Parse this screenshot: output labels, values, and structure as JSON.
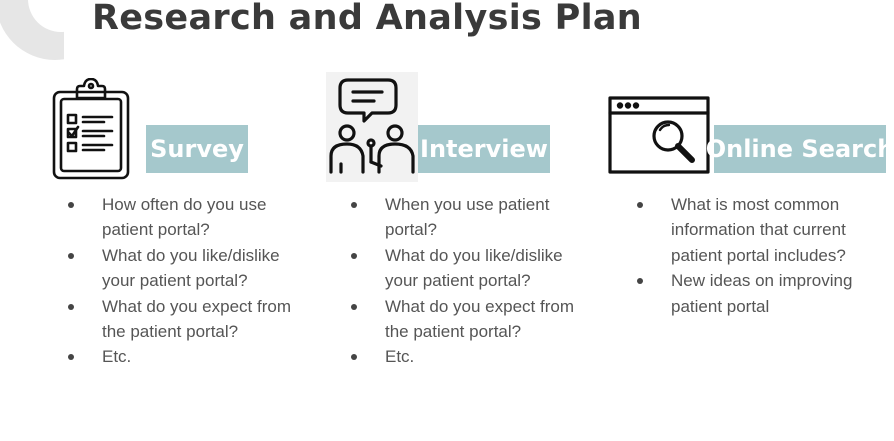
{
  "page": {
    "title": "Research and Analysis Plan"
  },
  "columns": [
    {
      "label": "Survey",
      "icon": "clipboard-checklist-icon",
      "items": [
        "How often do you use patient portal?",
        "What do you like/dislike your patient portal?",
        "What do you expect from the patient portal?",
        "Etc."
      ]
    },
    {
      "label": "Interview",
      "icon": "interview-people-icon",
      "items": [
        "When you use patient portal?",
        "What do you like/dislike your patient portal?",
        "What do you expect from the patient portal?",
        "Etc."
      ]
    },
    {
      "label": "Online Search",
      "icon": "browser-search-icon",
      "items": [
        "What is most common information that current patient portal includes?",
        "New ideas on improving patient portal"
      ]
    }
  ],
  "colors": {
    "label_bg": "#a5c8cc",
    "label_text": "#ffffff",
    "title": "#3a3a3a"
  }
}
